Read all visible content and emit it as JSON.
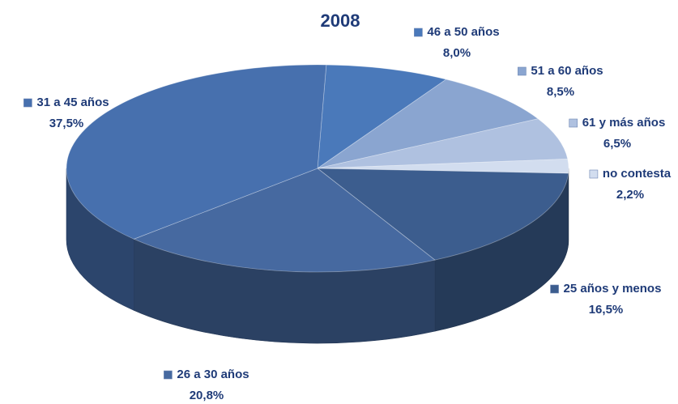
{
  "chart_data": {
    "type": "pie",
    "title": "2008",
    "categories": [
      "46 a 50 años",
      "51 a 60 años",
      "61 y más años",
      "no contesta",
      "25 años y menos",
      "26 a 30 años",
      "31 a 45 años"
    ],
    "values": [
      8.0,
      8.5,
      6.5,
      2.2,
      16.5,
      20.8,
      37.5
    ],
    "value_labels": [
      "8,0%",
      "8,5%",
      "6,5%",
      "2,2%",
      "16,5%",
      "20,8%",
      "37,5%"
    ],
    "colors": [
      "#4a79ba",
      "#8aa5d0",
      "#afc1e0",
      "#d2ddef",
      "#3c5d8e",
      "#4669a0",
      "#4770ae"
    ]
  }
}
